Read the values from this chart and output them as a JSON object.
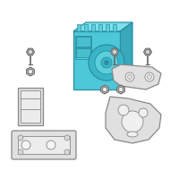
{
  "bg_color": "#ffffff",
  "border_color": "#cccccc",
  "hydraulic_color": "#4dc8d8",
  "hydraulic_stroke": "#2a8fa0",
  "part_color": "#e0e0e0",
  "part_stroke": "#888888",
  "screw_color": "#b0b0b0",
  "screw_stroke": "#666666",
  "fig_width": 2.0,
  "fig_height": 2.0,
  "dpi": 100
}
